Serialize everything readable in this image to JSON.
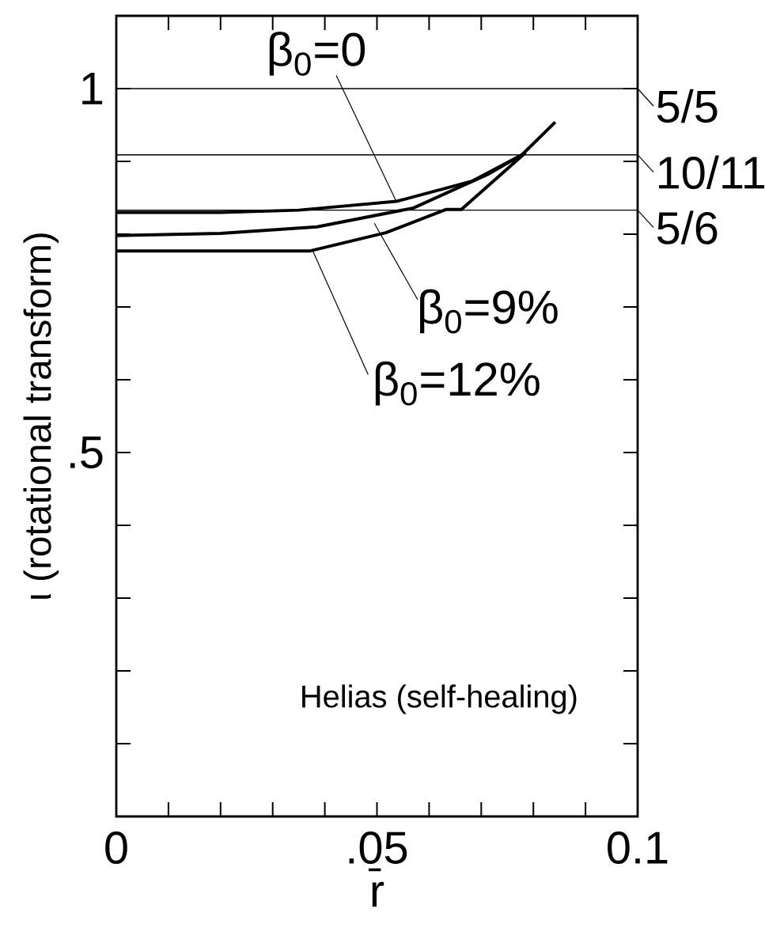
{
  "chart_data": {
    "type": "line",
    "xlabel": "r̄",
    "ylabel": "ι (rotational transform)",
    "xlim": [
      0,
      0.1
    ],
    "ylim": [
      0,
      1.1
    ],
    "xticks": [
      0,
      {
        "value": 0.05,
        "label": ".05"
      },
      {
        "value": 0.1,
        "label": "0.1"
      }
    ],
    "yticks": [
      {
        "value": 0,
        "label": null
      },
      {
        "value": 0.5,
        "label": ".5"
      },
      1
    ],
    "grid": false,
    "legend": "top right",
    "marker": "none",
    "line_style": "solid",
    "series": [
      {
        "name": "β$_{0}$=0",
        "color": "#000000",
        "x": [
          0,
          0.02,
          0.035,
          0.0537,
          0.0683,
          0.0778,
          0.0842
        ],
        "values": [
          0.83,
          0.83,
          0.833,
          0.845,
          0.873,
          0.909,
          0.954
        ]
      },
      {
        "name": "β$_{0}$=9%",
        "color": "#000000",
        "x": [
          0,
          0.02,
          0.0385,
          0.057,
          0.0715,
          0.0785
        ],
        "values": [
          0.798,
          0.801,
          0.81,
          0.836,
          0.883,
          0.912
        ]
      },
      {
        "name": "β$_{0}$=12%",
        "color": "#000000",
        "x": [
          0,
          0.02,
          0.0372,
          0.0517,
          0.0633,
          0.0662,
          0.0785
        ],
        "values": [
          0.777,
          0.777,
          0.777,
          0.802,
          0.834,
          0.834,
          0.912
        ]
      }
    ],
    "ref_lines": [
      {
        "axis": "y",
        "value": 1,
        "color": "#000000"
      },
      {
        "axis": "y",
        "value": 0.909,
        "color": "#000000"
      },
      {
        "axis": "y",
        "value": 0.833,
        "color": "#000000"
      }
    ],
    "annotations": [
      "Helias (self-healing)",
      "5/5",
      "10/11",
      "5/6"
    ]
  }
}
